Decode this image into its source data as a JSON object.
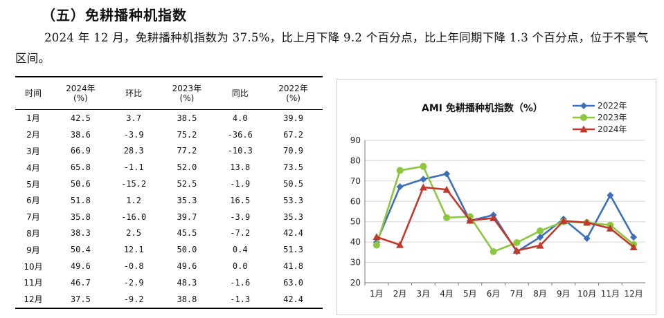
{
  "section": {
    "heading": "（五）免耕播种机指数",
    "paragraph": "2024 年 12 月，免耕播种机指数为 37.5%，比上月下降 9.2 个百分点，比上年同期下降 1.3 个百分点，位于不景气区间。"
  },
  "table": {
    "headers": [
      "时间",
      "2024年\n(%)",
      "环比",
      "2023年\n(%)",
      "同比",
      "2022年\n(%)"
    ],
    "rows": [
      [
        "1月",
        "42.5",
        "3.7",
        "38.5",
        "4.0",
        "39.9"
      ],
      [
        "2月",
        "38.6",
        "-3.9",
        "75.2",
        "-36.6",
        "67.2"
      ],
      [
        "3月",
        "66.9",
        "28.3",
        "77.2",
        "-10.3",
        "70.9"
      ],
      [
        "4月",
        "65.8",
        "-1.1",
        "52.0",
        "13.8",
        "73.5"
      ],
      [
        "5月",
        "50.6",
        "-15.2",
        "52.5",
        "-1.9",
        "50.5"
      ],
      [
        "6月",
        "51.8",
        "1.2",
        "35.3",
        "16.5",
        "53.3"
      ],
      [
        "7月",
        "35.8",
        "-16.0",
        "39.7",
        "-3.9",
        "35.3"
      ],
      [
        "8月",
        "38.3",
        "2.5",
        "45.5",
        "-7.2",
        "42.4"
      ],
      [
        "9月",
        "50.4",
        "12.1",
        "50.0",
        "0.4",
        "51.3"
      ],
      [
        "10月",
        "49.6",
        "-0.8",
        "49.6",
        "0.0",
        "41.8"
      ],
      [
        "11月",
        "46.7",
        "-2.9",
        "48.3",
        "-1.6",
        "63.0"
      ],
      [
        "12月",
        "37.5",
        "-9.2",
        "38.8",
        "-1.3",
        "42.4"
      ]
    ]
  },
  "chart_data": {
    "type": "line",
    "title": "AMI 免耕播种机指数（%）",
    "categories": [
      "1月",
      "2月",
      "3月",
      "4月",
      "5月",
      "6月",
      "7月",
      "8月",
      "9月",
      "10月",
      "11月",
      "12月"
    ],
    "y_ticks": [
      "20",
      "30",
      "40",
      "50",
      "60",
      "70",
      "80",
      "90"
    ],
    "ylim": [
      20,
      90
    ],
    "legend_position": "top-right",
    "series": [
      {
        "name": "2022年",
        "color": "#3e6fb8",
        "marker": "diamond",
        "values": [
          39.9,
          67.2,
          70.9,
          73.5,
          50.5,
          53.3,
          35.3,
          42.4,
          51.3,
          41.8,
          63.0,
          42.4
        ]
      },
      {
        "name": "2023年",
        "color": "#8dc63f",
        "marker": "circle",
        "values": [
          38.5,
          75.2,
          77.2,
          52.0,
          52.5,
          35.3,
          39.7,
          45.5,
          50.0,
          49.6,
          48.3,
          38.8
        ]
      },
      {
        "name": "2024年",
        "color": "#c0392b",
        "marker": "triangle",
        "values": [
          42.5,
          38.6,
          66.9,
          65.8,
          50.6,
          51.8,
          35.8,
          38.3,
          50.4,
          49.6,
          46.7,
          37.5
        ]
      }
    ]
  }
}
